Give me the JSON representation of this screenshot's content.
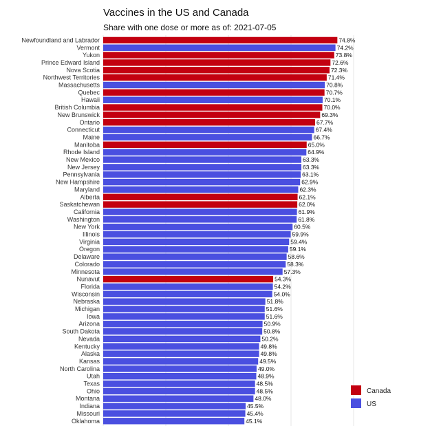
{
  "chart_data": {
    "type": "bar",
    "orientation": "horizontal",
    "title": "Vaccines in the US and Canada",
    "subtitle": "Share with one dose or more as of: 2021-07-05",
    "xlabel": "",
    "ylabel": "",
    "xlim": [
      0,
      82
    ],
    "grid": true,
    "legend_position": "bottom-right",
    "colors": {
      "Canada": "#c30010",
      "US": "#4a4fe0"
    },
    "legend": [
      "Canada",
      "US"
    ],
    "bars": [
      {
        "label": "Newfoundland and Labrador",
        "value": 74.8,
        "value_label": "74.8%",
        "group": "Canada"
      },
      {
        "label": "Vermont",
        "value": 74.2,
        "value_label": "74.2%",
        "group": "US"
      },
      {
        "label": "Yukon",
        "value": 73.8,
        "value_label": "73.8%",
        "group": "Canada"
      },
      {
        "label": "Prince Edward Island",
        "value": 72.6,
        "value_label": "72.6%",
        "group": "Canada"
      },
      {
        "label": "Nova Scotia",
        "value": 72.3,
        "value_label": "72.3%",
        "group": "Canada"
      },
      {
        "label": "Northwest Territories",
        "value": 71.4,
        "value_label": "71.4%",
        "group": "Canada"
      },
      {
        "label": "Massachusetts",
        "value": 70.8,
        "value_label": "70.8%",
        "group": "US"
      },
      {
        "label": "Quebec",
        "value": 70.7,
        "value_label": "70.7%",
        "group": "Canada"
      },
      {
        "label": "Hawaii",
        "value": 70.1,
        "value_label": "70.1%",
        "group": "US"
      },
      {
        "label": "British Columbia",
        "value": 70.0,
        "value_label": "70.0%",
        "group": "Canada"
      },
      {
        "label": "New Brunswick",
        "value": 69.3,
        "value_label": "69.3%",
        "group": "Canada"
      },
      {
        "label": "Ontario",
        "value": 67.7,
        "value_label": "67.7%",
        "group": "Canada"
      },
      {
        "label": "Connecticut",
        "value": 67.4,
        "value_label": "67.4%",
        "group": "US"
      },
      {
        "label": "Maine",
        "value": 66.7,
        "value_label": "66.7%",
        "group": "US"
      },
      {
        "label": "Manitoba",
        "value": 65.0,
        "value_label": "65.0%",
        "group": "Canada"
      },
      {
        "label": "Rhode Island",
        "value": 64.9,
        "value_label": "64.9%",
        "group": "US"
      },
      {
        "label": "New Mexico",
        "value": 63.3,
        "value_label": "63.3%",
        "group": "US"
      },
      {
        "label": "New Jersey",
        "value": 63.3,
        "value_label": "63.3%",
        "group": "US"
      },
      {
        "label": "Pennsylvania",
        "value": 63.1,
        "value_label": "63.1%",
        "group": "US"
      },
      {
        "label": "New Hampshire",
        "value": 62.9,
        "value_label": "62.9%",
        "group": "US"
      },
      {
        "label": "Maryland",
        "value": 62.3,
        "value_label": "62.3%",
        "group": "US"
      },
      {
        "label": "Alberta",
        "value": 62.1,
        "value_label": "62.1%",
        "group": "Canada"
      },
      {
        "label": "Saskatchewan",
        "value": 62.0,
        "value_label": "62.0%",
        "group": "Canada"
      },
      {
        "label": "California",
        "value": 61.9,
        "value_label": "61.9%",
        "group": "US"
      },
      {
        "label": "Washington",
        "value": 61.8,
        "value_label": "61.8%",
        "group": "US"
      },
      {
        "label": "New York",
        "value": 60.5,
        "value_label": "60.5%",
        "group": "US"
      },
      {
        "label": "Illinois",
        "value": 59.9,
        "value_label": "59.9%",
        "group": "US"
      },
      {
        "label": "Virginia",
        "value": 59.4,
        "value_label": "59.4%",
        "group": "US"
      },
      {
        "label": "Oregon",
        "value": 59.1,
        "value_label": "59.1%",
        "group": "US"
      },
      {
        "label": "Delaware",
        "value": 58.6,
        "value_label": "58.6%",
        "group": "US"
      },
      {
        "label": "Colorado",
        "value": 58.3,
        "value_label": "58.3%",
        "group": "US"
      },
      {
        "label": "Minnesota",
        "value": 57.3,
        "value_label": "57.3%",
        "group": "US"
      },
      {
        "label": "Nunavut",
        "value": 54.3,
        "value_label": "54.3%",
        "group": "Canada"
      },
      {
        "label": "Florida",
        "value": 54.2,
        "value_label": "54.2%",
        "group": "US"
      },
      {
        "label": "Wisconsin",
        "value": 54.0,
        "value_label": "54.0%",
        "group": "US"
      },
      {
        "label": "Nebraska",
        "value": 51.8,
        "value_label": "51.8%",
        "group": "US"
      },
      {
        "label": "Michigan",
        "value": 51.6,
        "value_label": "51.6%",
        "group": "US"
      },
      {
        "label": "Iowa",
        "value": 51.6,
        "value_label": "51.6%",
        "group": "US"
      },
      {
        "label": "Arizona",
        "value": 50.9,
        "value_label": "50.9%",
        "group": "US"
      },
      {
        "label": "South Dakota",
        "value": 50.8,
        "value_label": "50.8%",
        "group": "US"
      },
      {
        "label": "Nevada",
        "value": 50.2,
        "value_label": "50.2%",
        "group": "US"
      },
      {
        "label": "Kentucky",
        "value": 49.8,
        "value_label": "49.8%",
        "group": "US"
      },
      {
        "label": "Alaska",
        "value": 49.8,
        "value_label": "49.8%",
        "group": "US"
      },
      {
        "label": "Kansas",
        "value": 49.5,
        "value_label": "49.5%",
        "group": "US"
      },
      {
        "label": "North Carolina",
        "value": 49.0,
        "value_label": "49.0%",
        "group": "US"
      },
      {
        "label": "Utah",
        "value": 48.9,
        "value_label": "48.9%",
        "group": "US"
      },
      {
        "label": "Texas",
        "value": 48.5,
        "value_label": "48.5%",
        "group": "US"
      },
      {
        "label": "Ohio",
        "value": 48.5,
        "value_label": "48.5%",
        "group": "US"
      },
      {
        "label": "Montana",
        "value": 48.0,
        "value_label": "48.0%",
        "group": "US"
      },
      {
        "label": "Indiana",
        "value": 45.5,
        "value_label": "45.5%",
        "group": "US"
      },
      {
        "label": "Missouri",
        "value": 45.4,
        "value_label": "45.4%",
        "group": "US"
      },
      {
        "label": "Oklahoma",
        "value": 45.1,
        "value_label": "45.1%",
        "group": "US"
      }
    ]
  }
}
